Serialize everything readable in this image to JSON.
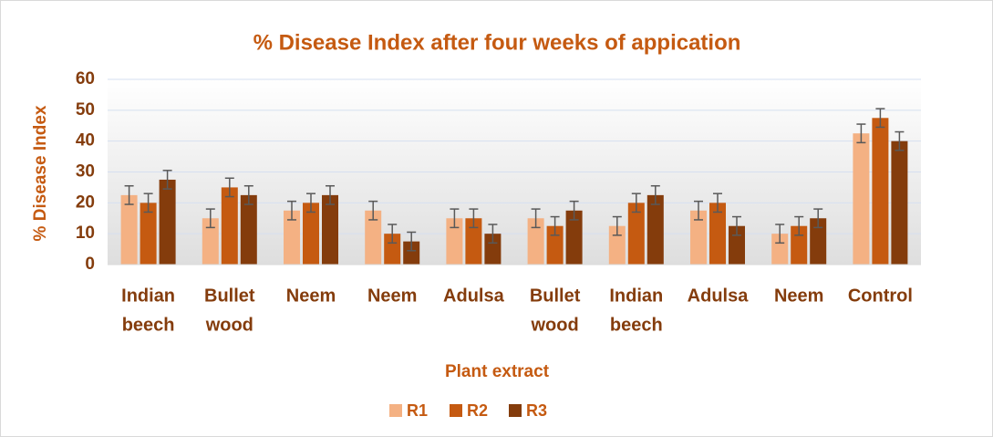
{
  "chart_data": {
    "type": "bar",
    "title": "% Disease Index after four weeks of appication",
    "xlabel": "Plant extract",
    "ylabel": "% Disease Index",
    "categories": [
      [
        "Indian",
        "beech"
      ],
      [
        "Bullet",
        "wood"
      ],
      [
        "Neem"
      ],
      [
        "Neem"
      ],
      [
        "Adulsa"
      ],
      [
        "Bullet",
        "wood"
      ],
      [
        "Indian",
        "beech"
      ],
      [
        "Adulsa"
      ],
      [
        "Neem"
      ],
      [
        "Control"
      ]
    ],
    "series": [
      {
        "name": "R1",
        "color": "#f4b183",
        "values": [
          22.5,
          15,
          17.5,
          17.5,
          15,
          15,
          12.5,
          17.5,
          10,
          42.5
        ],
        "errors": [
          3,
          3,
          3,
          3,
          3,
          3,
          3,
          3,
          3,
          3
        ]
      },
      {
        "name": "R2",
        "color": "#c55a11",
        "values": [
          20,
          25,
          20,
          10,
          15,
          12.5,
          20,
          20,
          12.5,
          47.5
        ],
        "errors": [
          3,
          3,
          3,
          3,
          3,
          3,
          3,
          3,
          3,
          3
        ]
      },
      {
        "name": "R3",
        "color": "#843c0c",
        "values": [
          27.5,
          22.5,
          22.5,
          7.5,
          10,
          17.5,
          22.5,
          12.5,
          15,
          40
        ],
        "errors": [
          3,
          3,
          3,
          3,
          3,
          3,
          3,
          3,
          3,
          3
        ]
      }
    ],
    "ylim": [
      0,
      60
    ],
    "yticks": [
      0,
      10,
      20,
      30,
      40,
      50,
      60
    ],
    "grid": true,
    "legend": "bottom"
  }
}
